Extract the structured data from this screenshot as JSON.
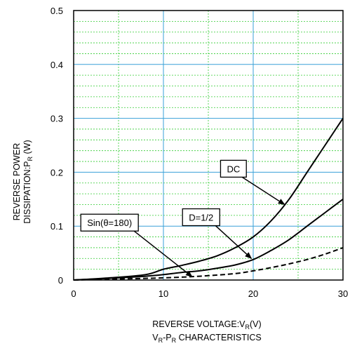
{
  "chart_data": {
    "type": "line",
    "xlabel": {
      "main": "REVERSE VOLTAGE:V",
      "sub": "R",
      "unit": "(V)"
    },
    "ylabel": {
      "line1": "REVERSE POWER",
      "line2_main": "DISSIPATION:P",
      "line2_sub": "R",
      "line2_unit": " (W)"
    },
    "caption": {
      "a": "V",
      "a_sub": "R",
      "b": "-P",
      "b_sub": "R",
      "c": " CHARACTERISTICS"
    },
    "xlim": [
      0,
      30
    ],
    "ylim": [
      0,
      0.5
    ],
    "xticks": [
      0,
      10,
      20,
      30
    ],
    "yticks": [
      0,
      0.1,
      0.2,
      0.3,
      0.4,
      0.5
    ],
    "xtick_labels": [
      "0",
      "10",
      "20",
      "30"
    ],
    "ytick_labels": [
      "0",
      "0.1",
      "0.2",
      "0.3",
      "0.4",
      "0.5"
    ],
    "grid": {
      "major": {
        "x_step": 10,
        "y_step": 0.1,
        "color": "#3aa0d8"
      },
      "minor": {
        "x_step": 5,
        "y_step": 0.02,
        "color": "#33cc33"
      }
    },
    "series": [
      {
        "name": "DC",
        "style": "solid",
        "x": [
          0,
          4,
          8,
          10,
          12,
          14,
          16,
          18,
          20,
          22,
          24,
          26,
          28,
          30
        ],
        "y": [
          0,
          0.004,
          0.01,
          0.02,
          0.027,
          0.035,
          0.045,
          0.06,
          0.08,
          0.11,
          0.15,
          0.2,
          0.25,
          0.3
        ]
      },
      {
        "name": "D=1/2",
        "style": "solid",
        "x": [
          0,
          5,
          8,
          10,
          12,
          14,
          16,
          18,
          20,
          22,
          24,
          26,
          28,
          30
        ],
        "y": [
          0,
          0.004,
          0.007,
          0.01,
          0.014,
          0.017,
          0.022,
          0.028,
          0.038,
          0.055,
          0.075,
          0.1,
          0.125,
          0.15
        ]
      },
      {
        "name": "Sin(θ=180)",
        "style": "dashed",
        "x": [
          0,
          5,
          10,
          14,
          18,
          20,
          22,
          24,
          26,
          28,
          30
        ],
        "y": [
          0,
          0.002,
          0.004,
          0.007,
          0.012,
          0.017,
          0.023,
          0.03,
          0.038,
          0.048,
          0.06
        ]
      }
    ],
    "annotations": [
      {
        "text": "DC",
        "box_xy": [
          17.8,
          0.2
        ],
        "arrow_to": [
          23.5,
          0.14
        ]
      },
      {
        "text": "D=1/2",
        "box_xy": [
          14.2,
          0.11
        ],
        "arrow_to": [
          19.8,
          0.04
        ]
      },
      {
        "text": "Sin(θ=180)",
        "box_xy": [
          4.0,
          0.1
        ],
        "arrow_to": [
          13.2,
          0.006
        ]
      }
    ]
  }
}
